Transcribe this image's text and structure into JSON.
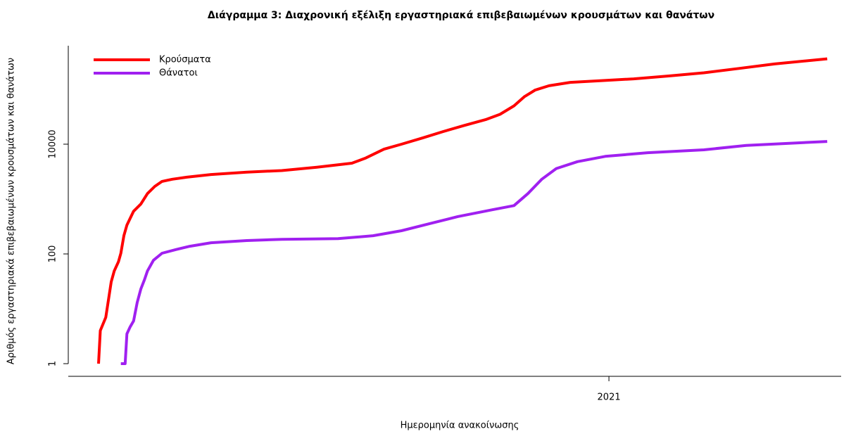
{
  "chart_data": {
    "type": "line",
    "title": "Διάγραμμα 3: Διαχρονική εξέλιξη εργαστηριακά επιβεβαιωμένων κρουσμάτων και θανάτων",
    "x_label": "Ημερομηνία ανακοίνωσης",
    "y_label": "Αριθμός εργαστηριακά επιβεβαιωμένων κρουσμάτων και θανάτων",
    "log_y": true,
    "legend": "top-left",
    "xlim": [
      2020.106,
      2021.384
    ],
    "xticks": [
      2021
    ],
    "ylim": [
      0.588,
      623000
    ],
    "yticks": [
      1,
      100,
      10000
    ],
    "series": [
      {
        "name": "Κρούσματα",
        "color": "#ff0000",
        "x": [
          2020.156,
          2020.159,
          2020.168,
          2020.177,
          2020.182,
          2020.189,
          2020.193,
          2020.198,
          2020.203,
          2020.214,
          2020.226,
          2020.237,
          2020.249,
          2020.261,
          2020.278,
          2020.302,
          2020.342,
          2020.401,
          2020.459,
          2020.517,
          2020.575,
          2020.598,
          2020.628,
          2020.657,
          2020.692,
          2020.726,
          2020.761,
          2020.796,
          2020.82,
          2020.843,
          2020.86,
          2020.878,
          2020.901,
          2020.936,
          2020.983,
          2021.041,
          2021.099,
          2021.157,
          2021.215,
          2021.274,
          2021.361
        ],
        "values": [
          1,
          4,
          7,
          31,
          49,
          72,
          103,
          215,
          335,
          600,
          810,
          1260,
          1700,
          2100,
          2300,
          2500,
          2800,
          3100,
          3300,
          3800,
          4500,
          5600,
          8100,
          10000,
          13000,
          17000,
          22000,
          28000,
          35000,
          50000,
          73000,
          97000,
          116000,
          134000,
          143000,
          155000,
          175000,
          200000,
          240000,
          290000,
          360000
        ]
      },
      {
        "name": "Θάνατοι",
        "color": "#a020f0",
        "x": [
          2020.193,
          2020.2,
          2020.203,
          2020.208,
          2020.214,
          2020.22,
          2020.226,
          2020.232,
          2020.237,
          2020.247,
          2020.261,
          2020.284,
          2020.307,
          2020.342,
          2020.401,
          2020.459,
          2020.552,
          2020.61,
          2020.657,
          2020.703,
          2020.75,
          2020.808,
          2020.843,
          2020.866,
          2020.889,
          2020.913,
          2020.948,
          2020.994,
          2021.064,
          2021.157,
          2021.227,
          2021.361
        ],
        "values": [
          1,
          1,
          3.5,
          4.6,
          6,
          13,
          23,
          34,
          49,
          77,
          103,
          120,
          138,
          160,
          175,
          185,
          190,
          215,
          265,
          355,
          480,
          640,
          760,
          1260,
          2300,
          3600,
          4800,
          6000,
          7000,
          7900,
          9500,
          11200
        ]
      }
    ]
  }
}
